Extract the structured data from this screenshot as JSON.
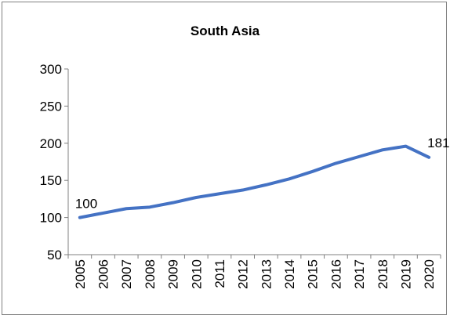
{
  "chart_data": {
    "type": "line",
    "title": "South Asia",
    "xlabel": "",
    "ylabel": "",
    "x": [
      "2005",
      "2006",
      "2007",
      "2008",
      "2009",
      "2010",
      "2011",
      "2012",
      "2013",
      "2014",
      "2015",
      "2016",
      "2017",
      "2018",
      "2019",
      "2020"
    ],
    "series": [
      {
        "values": [
          100,
          106,
          112,
          114,
          120,
          127,
          132,
          137,
          144,
          152,
          162,
          173,
          182,
          191,
          196,
          181
        ],
        "color": "#4472C4"
      }
    ],
    "ylim": [
      50,
      300
    ],
    "yticks": [
      50,
      100,
      150,
      200,
      250,
      300
    ],
    "data_labels": [
      {
        "x": "2005",
        "text": "100"
      },
      {
        "x": "2020",
        "text": "181"
      }
    ],
    "grid": false,
    "legend": "none"
  }
}
